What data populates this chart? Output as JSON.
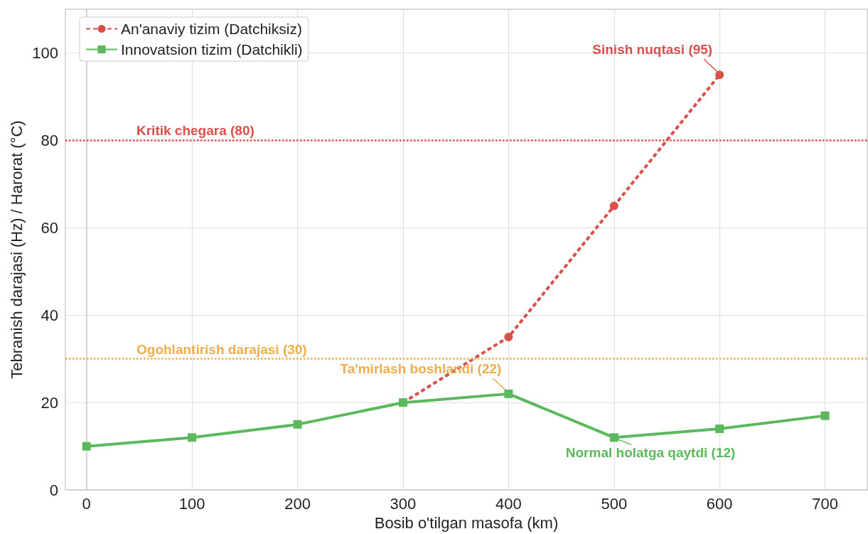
{
  "chart_data": {
    "type": "line",
    "xlabel": "Bosib o'tilgan masofa (km)",
    "ylabel": "Tebranish darajasi (Hz) / Harorat (°C)",
    "xlim": [
      -20,
      740
    ],
    "xticks": [
      0,
      100,
      200,
      300,
      400,
      500,
      600,
      700
    ],
    "ylim": [
      0,
      110
    ],
    "yticks": [
      0,
      20,
      40,
      60,
      80,
      100
    ],
    "series": [
      {
        "name": "An'anaviy tizim (Datchiksiz)",
        "color": "#d9504a",
        "x": [
          300,
          400,
          500,
          600
        ],
        "values": [
          20,
          35,
          65,
          95
        ],
        "marker": "circle",
        "line_style": "dashed"
      },
      {
        "name": "Innovatsion tizim (Datchikli)",
        "color": "#5cb85c",
        "x": [
          0,
          100,
          200,
          300,
          400,
          500,
          600,
          700
        ],
        "values": [
          10,
          12,
          15,
          20,
          22,
          12,
          14,
          17
        ],
        "marker": "square",
        "line_style": "solid"
      }
    ],
    "ref_lines": [
      {
        "axis": "y",
        "value": 80,
        "label": "Kritik chegara (80)",
        "color": "#d9504a",
        "line_style": "dotted"
      },
      {
        "axis": "y",
        "value": 30,
        "label": "Ogohlantirish darajasi (30)",
        "color": "#f0ad4e",
        "line_style": "dotted"
      }
    ],
    "annotations": [
      {
        "text": "Sinish nuqtasi (95)",
        "x": 600,
        "y": 95
      },
      {
        "text": "Ta'mirlash boshlandi (22)",
        "x": 400,
        "y": 22
      },
      {
        "text": "Normal holatga qaytdi (12)",
        "x": 500,
        "y": 12
      }
    ],
    "grid": true,
    "legend": "top left"
  }
}
